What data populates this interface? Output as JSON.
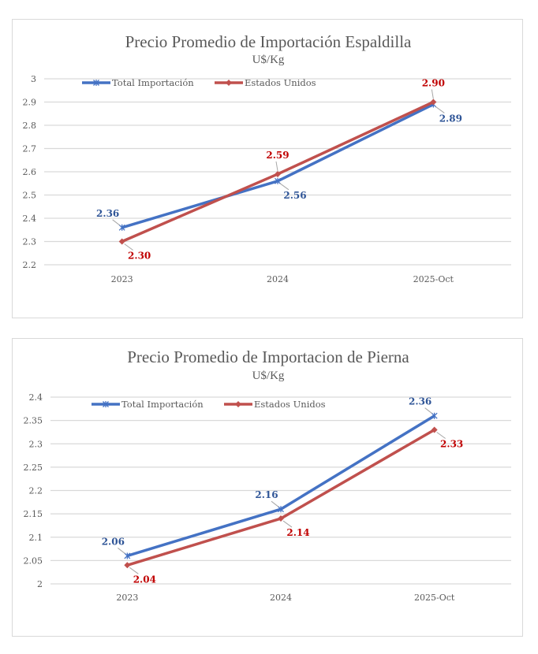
{
  "chart_data": [
    {
      "type": "line",
      "title": "Precio Promedio de Importación Espaldilla",
      "subtitle": "U$/Kg",
      "xlabel": "",
      "ylabel": "",
      "categories": [
        "2023",
        "2024",
        "2025-Oct"
      ],
      "ylim": [
        2.2,
        3.0
      ],
      "yticks": [
        2.2,
        2.3,
        2.4,
        2.5,
        2.6,
        2.7,
        2.8,
        2.9,
        3
      ],
      "ytick_labels": [
        "2.2",
        "2.3",
        "2.4",
        "2.5",
        "2.6",
        "2.7",
        "2.8",
        "2.9",
        "3"
      ],
      "grid": true,
      "legend_position": "top-left",
      "series": [
        {
          "name": "Total Importación",
          "color": "#4472c4",
          "label_color": "#2f5597",
          "marker": "asterisk",
          "values": [
            2.36,
            2.56,
            2.89
          ],
          "labels": [
            "2.36",
            "2.56",
            "2.89"
          ],
          "label_positions": [
            "above-left",
            "below-right",
            "below-right"
          ]
        },
        {
          "name": "Estados Unidos",
          "color": "#c0504d",
          "label_color": "#c00000",
          "marker": "diamond",
          "values": [
            2.3,
            2.59,
            2.9
          ],
          "labels": [
            "2.30",
            "2.59",
            "2.90"
          ],
          "label_positions": [
            "below-right",
            "above",
            "above"
          ]
        }
      ]
    },
    {
      "type": "line",
      "title": "Precio Promedio de Importacion de Pierna",
      "subtitle": "U$/Kg",
      "xlabel": "",
      "ylabel": "",
      "categories": [
        "2023",
        "2024",
        "2025-Oct"
      ],
      "ylim": [
        2.0,
        2.4
      ],
      "yticks": [
        2,
        2.05,
        2.1,
        2.15,
        2.2,
        2.25,
        2.3,
        2.35,
        2.4
      ],
      "ytick_labels": [
        "2",
        "2.05",
        "2.1",
        "2.15",
        "2.2",
        "2.25",
        "2.3",
        "2.35",
        "2.4"
      ],
      "grid": true,
      "legend_position": "top-left",
      "series": [
        {
          "name": "Total Importación",
          "color": "#4472c4",
          "label_color": "#2f5597",
          "marker": "asterisk",
          "values": [
            2.06,
            2.16,
            2.36
          ],
          "labels": [
            "2.06",
            "2.16",
            "2.36"
          ],
          "label_positions": [
            "above-left",
            "above-left",
            "above-left"
          ]
        },
        {
          "name": "Estados Unidos",
          "color": "#c0504d",
          "label_color": "#c00000",
          "marker": "diamond",
          "values": [
            2.04,
            2.14,
            2.33
          ],
          "labels": [
            "2.04",
            "2.14",
            "2.33"
          ],
          "label_positions": [
            "below-right",
            "below-right",
            "below-right"
          ]
        }
      ]
    }
  ]
}
